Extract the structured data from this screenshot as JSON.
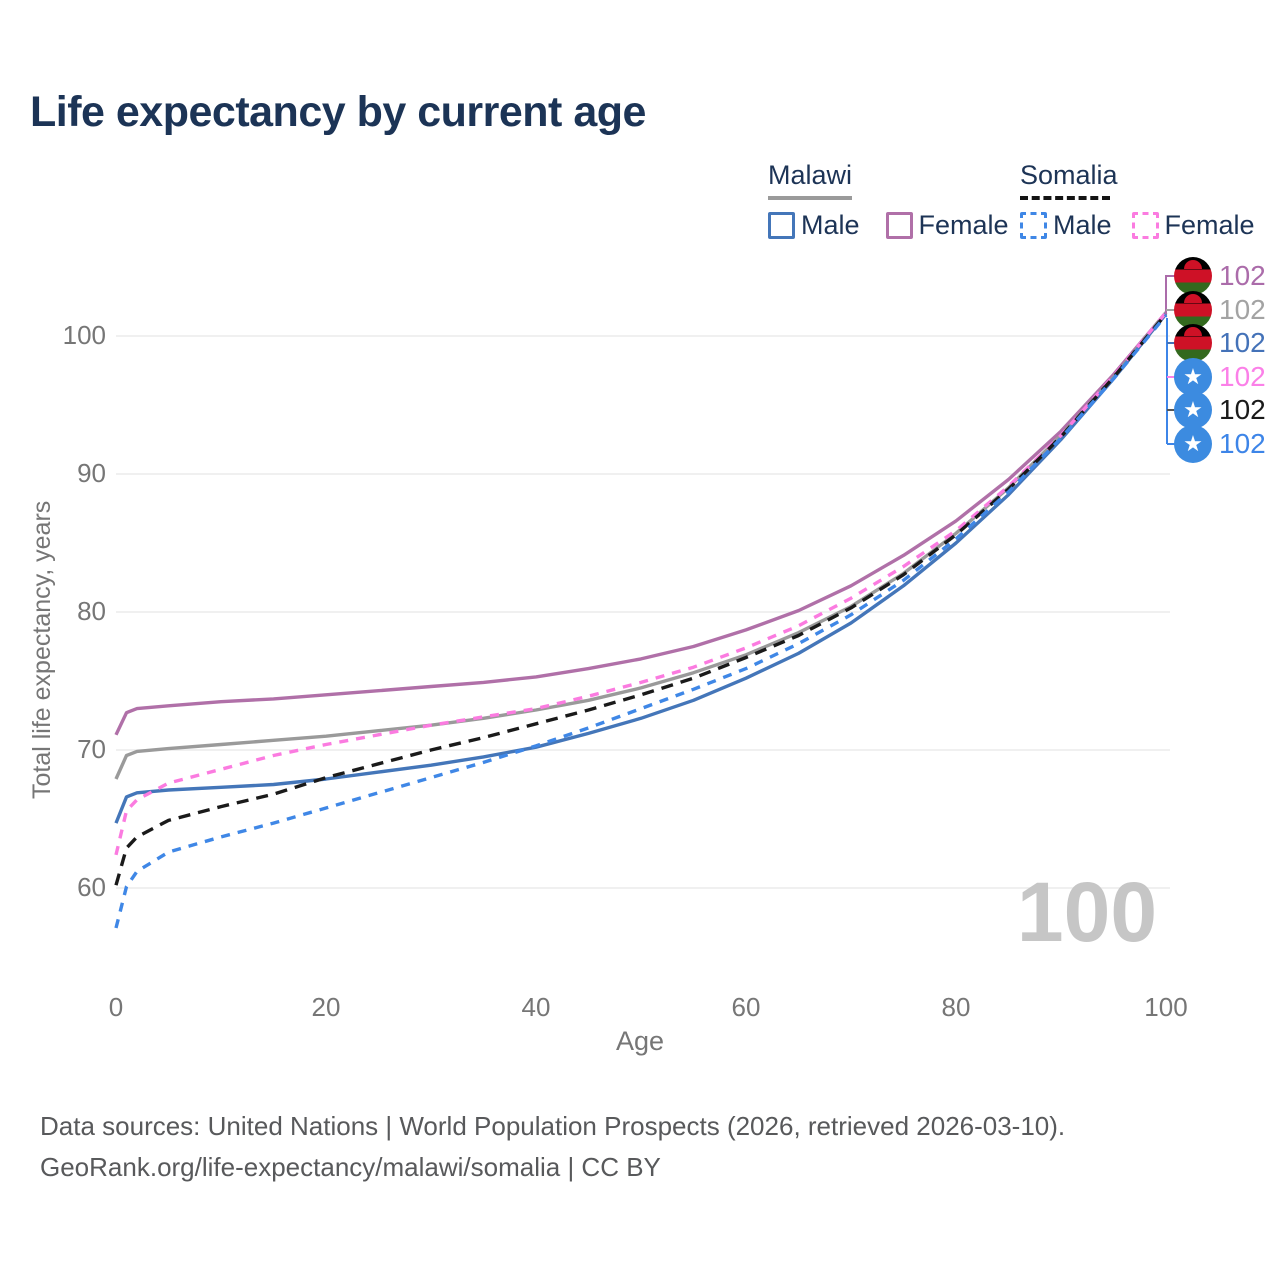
{
  "title": "Life expectancy by current age",
  "watermark": "100",
  "legend": {
    "groups": [
      {
        "label": "Malawi",
        "line_style": "solid",
        "line_color": "#9a9a9a",
        "items": [
          {
            "label": "Male",
            "color": "#4476b9",
            "dashed": false
          },
          {
            "label": "Female",
            "color": "#b070a8",
            "dashed": false
          }
        ]
      },
      {
        "label": "Somalia",
        "line_style": "dashed",
        "line_color": "#141414",
        "items": [
          {
            "label": "Male",
            "color": "#3f87e6",
            "dashed": true
          },
          {
            "label": "Female",
            "color": "#fb7be0",
            "dashed": true
          }
        ]
      }
    ]
  },
  "axes": {
    "x": {
      "label": "Age",
      "ticks": [
        "0",
        "20",
        "40",
        "60",
        "80",
        "100"
      ]
    },
    "y": {
      "label": "Total life expectancy, years",
      "ticks": [
        "60",
        "70",
        "80",
        "90",
        "100"
      ]
    }
  },
  "end_labels": [
    {
      "flag": "malawi",
      "series": "Malawi Female",
      "value": "102",
      "color": "#ab6caa"
    },
    {
      "flag": "malawi",
      "series": "Malawi Both sexes",
      "value": "102",
      "color": "#a3a3a3"
    },
    {
      "flag": "malawi",
      "series": "Malawi Male",
      "value": "102",
      "color": "#4472b8"
    },
    {
      "flag": "somalia",
      "series": "Somalia Female",
      "value": "102",
      "color": "#fb80e8"
    },
    {
      "flag": "somalia",
      "series": "Somalia Both sexes",
      "value": "102",
      "color": "#1a1a1a"
    },
    {
      "flag": "somalia",
      "series": "Somalia Male",
      "value": "102",
      "color": "#3d85e8"
    }
  ],
  "footer": {
    "line1": "Data sources: United Nations | World Population Prospects (2026, retrieved 2026-03-10).",
    "line2": "GeoRank.org/life-expectancy/malawi/somalia | CC BY"
  },
  "chart_data": {
    "type": "line",
    "title": "Life expectancy by current age",
    "xlabel": "Age",
    "ylabel": "Total life expectancy, years",
    "xlim": [
      0,
      100
    ],
    "ylim": [
      53,
      106
    ],
    "xticks": [
      0,
      20,
      40,
      60,
      80,
      100
    ],
    "yticks": [
      60,
      70,
      80,
      90,
      100
    ],
    "grid": "horizontal-only",
    "legend_position": "top-right",
    "x": [
      0,
      1,
      2,
      5,
      10,
      15,
      20,
      25,
      30,
      35,
      40,
      45,
      50,
      55,
      60,
      65,
      70,
      75,
      80,
      85,
      90,
      95,
      100
    ],
    "series": [
      {
        "name": "Malawi Female",
        "country": "Malawi",
        "sex": "Female",
        "color": "#b070a8",
        "dash": "solid",
        "end_label": 102,
        "values": [
          71.1,
          72.7,
          73.0,
          73.2,
          73.5,
          73.7,
          74.0,
          74.3,
          74.6,
          74.9,
          75.3,
          75.9,
          76.6,
          77.5,
          78.7,
          80.1,
          81.9,
          84.1,
          86.6,
          89.6,
          93.1,
          97.2,
          101.7
        ]
      },
      {
        "name": "Malawi Both sexes",
        "country": "Malawi",
        "sex": "All",
        "color": "#9a9a9a",
        "dash": "solid",
        "end_label": 102,
        "values": [
          67.9,
          69.6,
          69.9,
          70.1,
          70.4,
          70.7,
          71.0,
          71.4,
          71.8,
          72.3,
          72.9,
          73.6,
          74.5,
          75.6,
          76.9,
          78.5,
          80.4,
          82.8,
          85.7,
          89.0,
          92.8,
          97.0,
          101.7
        ]
      },
      {
        "name": "Malawi Male",
        "country": "Malawi",
        "sex": "Male",
        "color": "#4476b9",
        "dash": "solid",
        "end_label": 102,
        "values": [
          64.7,
          66.6,
          66.9,
          67.1,
          67.3,
          67.5,
          67.9,
          68.4,
          68.9,
          69.5,
          70.2,
          71.2,
          72.3,
          73.6,
          75.2,
          77.0,
          79.2,
          81.9,
          85.0,
          88.5,
          92.5,
          96.9,
          101.6
        ]
      },
      {
        "name": "Somalia Female",
        "country": "Somalia",
        "sex": "Female",
        "color": "#fb7be0",
        "dash": "dashed",
        "end_label": 102,
        "values": [
          62.4,
          65.6,
          66.4,
          67.6,
          68.6,
          69.6,
          70.4,
          71.1,
          71.8,
          72.4,
          73.0,
          73.9,
          74.9,
          76.0,
          77.4,
          79.0,
          81.0,
          83.3,
          85.9,
          89.1,
          92.8,
          97.1,
          101.7
        ]
      },
      {
        "name": "Somalia Both sexes",
        "country": "Somalia",
        "sex": "All",
        "color": "#1a1a1a",
        "dash": "dashed",
        "end_label": 102,
        "values": [
          60.2,
          62.9,
          63.7,
          64.9,
          65.9,
          66.8,
          68.0,
          69.0,
          70.0,
          70.9,
          71.9,
          72.9,
          74.0,
          75.2,
          76.7,
          78.3,
          80.3,
          82.7,
          85.6,
          88.9,
          92.7,
          97.0,
          101.6
        ]
      },
      {
        "name": "Somalia Male",
        "country": "Somalia",
        "sex": "Male",
        "color": "#3f87e6",
        "dash": "dashed",
        "end_label": 102,
        "values": [
          57.1,
          60.1,
          61.2,
          62.6,
          63.7,
          64.7,
          65.8,
          66.9,
          68.0,
          69.1,
          70.3,
          71.6,
          73.0,
          74.4,
          75.9,
          77.7,
          79.8,
          82.3,
          85.3,
          88.7,
          92.6,
          96.9,
          101.5
        ]
      }
    ]
  }
}
